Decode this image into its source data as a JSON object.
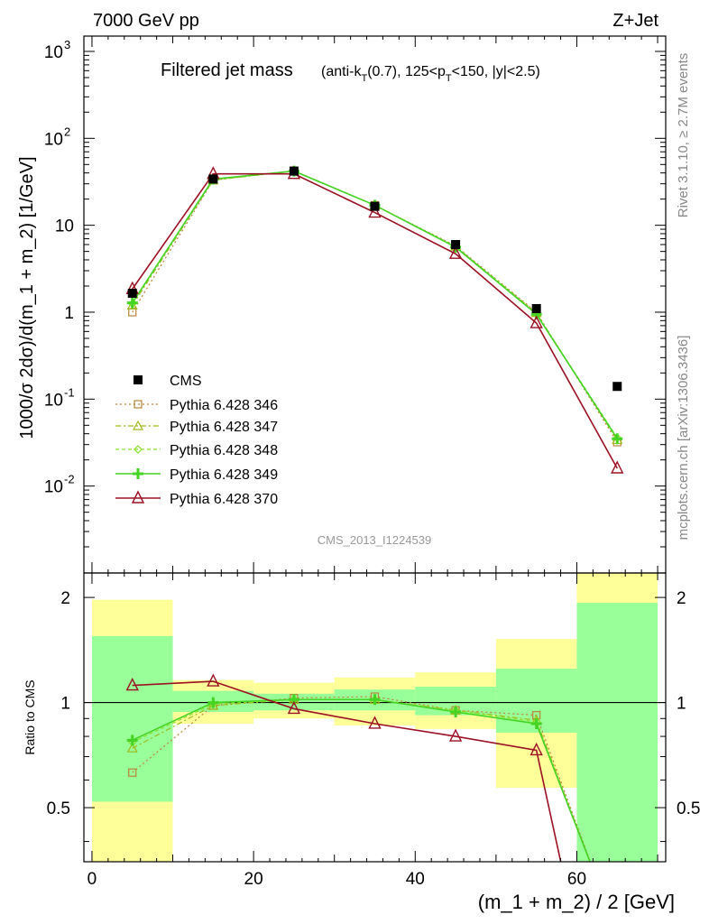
{
  "header": {
    "energy": "7000 GeV pp",
    "process": "Z+Jet",
    "title_main": "Filtered jet mass",
    "title_sub": "(anti-k",
    "title_sub_T": "T",
    "title_sub_rest1": "(0.7), 125<p",
    "title_sub_T2": "T",
    "title_sub_rest2": "<150, |y|<2.5)",
    "side_top": "Rivet 3.1.10, ≥ 2.7M events",
    "side_bottom": "mcplots.cern.ch [arXiv:1306.3436]",
    "watermark": "CMS_2013_I1224539"
  },
  "axes": {
    "ylabel_main": "1000/σ 2dσ)/d(m_1 + m_2) [1/GeV]",
    "ylabel_ratio": "Ratio to CMS",
    "xlabel": "(m_1 + m_2) / 2 [GeV]",
    "x_ticks": [
      "0",
      "20",
      "40",
      "60"
    ],
    "ratio_ticks": [
      "0.5",
      "1",
      "2"
    ]
  },
  "legend": {
    "items": [
      {
        "label": "CMS"
      },
      {
        "label": "Pythia 6.428 346"
      },
      {
        "label": "Pythia 6.428 347"
      },
      {
        "label": "Pythia 6.428 348"
      },
      {
        "label": "Pythia 6.428 349"
      },
      {
        "label": "Pythia 6.428 370"
      }
    ]
  },
  "chart_data": {
    "type": "line",
    "xlim": [
      -1,
      71
    ],
    "ylim": [
      0.001,
      1500
    ],
    "y_log": true,
    "ratio_ylim": [
      0.35,
      2.35
    ],
    "ratio_log": true,
    "x": [
      5,
      15,
      25,
      35,
      45,
      55,
      65
    ],
    "bin_edges": [
      0,
      10,
      20,
      30,
      40,
      50,
      60,
      70
    ],
    "data": {
      "name": "CMS",
      "color": "#000000",
      "values": [
        1.65,
        34,
        42,
        16.5,
        6.0,
        1.1,
        0.14
      ]
    },
    "series": [
      {
        "name": "Pythia 6.428 346",
        "color": "#b8863a",
        "marker": "square",
        "dash": "2,3",
        "values": [
          1.0,
          33,
          42.5,
          17,
          5.8,
          1.0,
          0.032
        ],
        "ratio": [
          0.63,
          0.98,
          1.03,
          1.04,
          0.95,
          0.92,
          null
        ]
      },
      {
        "name": "Pythia 6.428 347",
        "color": "#9dbb1a",
        "marker": "triangle",
        "dash": "6,3,2,3",
        "values": [
          1.2,
          33,
          42,
          17,
          5.7,
          0.98,
          0.034
        ],
        "ratio": [
          0.74,
          0.98,
          1.02,
          1.02,
          0.95,
          0.89,
          null
        ]
      },
      {
        "name": "Pythia 6.428 348",
        "color": "#8ae02e",
        "marker": "diamond",
        "dash": "4,3",
        "values": [
          1.25,
          33.5,
          42,
          17,
          5.7,
          0.96,
          0.036
        ],
        "ratio": [
          0.77,
          0.99,
          1.02,
          1.02,
          0.95,
          0.88,
          null
        ]
      },
      {
        "name": "Pythia 6.428 349",
        "color": "#44d424",
        "marker": "cross",
        "dash": "",
        "values": [
          1.28,
          34,
          42,
          17,
          5.6,
          0.95,
          0.035
        ],
        "ratio": [
          0.78,
          1.0,
          1.02,
          1.02,
          0.94,
          0.87,
          null
        ]
      },
      {
        "name": "Pythia 6.428 370",
        "color": "#9b1023",
        "marker": "triangle-open",
        "dash": "",
        "values": [
          1.85,
          39,
          39,
          14,
          4.7,
          0.75,
          0.016
        ],
        "ratio": [
          1.12,
          1.15,
          0.96,
          0.87,
          0.8,
          0.73,
          null
        ]
      }
    ],
    "bands": {
      "stat": [
        [
          0.52,
          1.55
        ],
        [
          0.94,
          1.08
        ],
        [
          0.95,
          1.06
        ],
        [
          0.95,
          1.09
        ],
        [
          0.92,
          1.11
        ],
        [
          0.82,
          1.25
        ],
        [
          0.35,
          1.93
        ]
      ],
      "total": [
        [
          0.35,
          1.97
        ],
        [
          0.87,
          1.16
        ],
        [
          0.9,
          1.14
        ],
        [
          0.86,
          1.18
        ],
        [
          0.84,
          1.22
        ],
        [
          0.57,
          1.52
        ],
        [
          0.35,
          2.35
        ]
      ]
    },
    "colors": {
      "band_total": "#ffff99",
      "band_stat": "#99ff99"
    }
  }
}
